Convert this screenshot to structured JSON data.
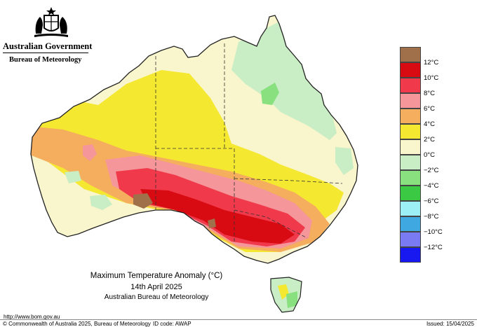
{
  "header": {
    "government": "Australian Government",
    "bureau": "Bureau of Meteorology"
  },
  "map": {
    "region": "Australia",
    "title": "Maximum Temperature Anomaly (°C)",
    "date": "14th April 2025",
    "source": "Australian Bureau of Meteorology"
  },
  "legend": {
    "items": [
      {
        "label": "12°C",
        "color": "#a0704a"
      },
      {
        "label": "10°C",
        "color": "#d80a12"
      },
      {
        "label": "8°C",
        "color": "#f0394a"
      },
      {
        "label": "6°C",
        "color": "#f5969a"
      },
      {
        "label": "4°C",
        "color": "#f5ae5e"
      },
      {
        "label": "2°C",
        "color": "#f5e830"
      },
      {
        "label": "0°C",
        "color": "#f9f5cc"
      },
      {
        "label": "−2°C",
        "color": "#c9edc4"
      },
      {
        "label": "−4°C",
        "color": "#88e07e"
      },
      {
        "label": "−6°C",
        "color": "#3bc842"
      },
      {
        "label": "−8°C",
        "color": "#9cf0f5"
      },
      {
        "label": "−10°C",
        "color": "#3fa8e0"
      },
      {
        "label": "−12°C",
        "color": "#7a7af2"
      },
      {
        "label": "",
        "color": "#1818f0"
      }
    ]
  },
  "footer": {
    "url": "http://www.bom.gov.au",
    "copyright": "© Commonwealth of Australia 2025, Bureau of Meteorology",
    "id_code": "ID code: AWAP",
    "issued": "Issued: 15/04/2025"
  }
}
